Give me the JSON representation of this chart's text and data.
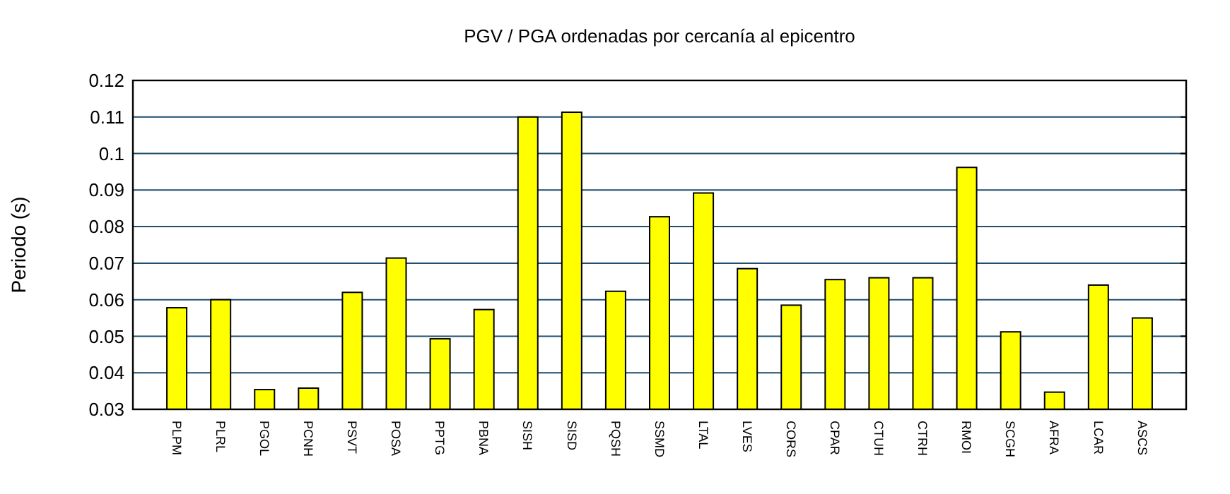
{
  "chart_data": {
    "type": "bar",
    "title": "PGV / PGA ordenadas por cercanía al epicentro",
    "ylabel": "Periodo (s)",
    "categories": [
      "PLPM",
      "PLRL",
      "PGOL",
      "PCNH",
      "PSVT",
      "POSA",
      "PPTG",
      "PBNA",
      "SISH",
      "SISD",
      "PQSH",
      "SSMD",
      "LTAL",
      "LVES",
      "CORS",
      "CPAR",
      "CTUH",
      "CTRH",
      "RMOI",
      "SCGH",
      "AFRA",
      "LCAR",
      "ASCS"
    ],
    "values": [
      0.0578,
      0.06,
      0.0354,
      0.0358,
      0.062,
      0.0714,
      0.0493,
      0.0573,
      0.11,
      0.1113,
      0.0623,
      0.0827,
      0.0892,
      0.0685,
      0.0585,
      0.0655,
      0.066,
      0.066,
      0.0962,
      0.0512,
      0.0347,
      0.064,
      0.055
    ],
    "color": "#ffff00",
    "ylim": [
      0.03,
      0.12
    ],
    "yticks": [
      0.03,
      0.04,
      0.05,
      0.06,
      0.07,
      0.08,
      0.09,
      0.1,
      0.11,
      0.12
    ],
    "grid": "y"
  }
}
